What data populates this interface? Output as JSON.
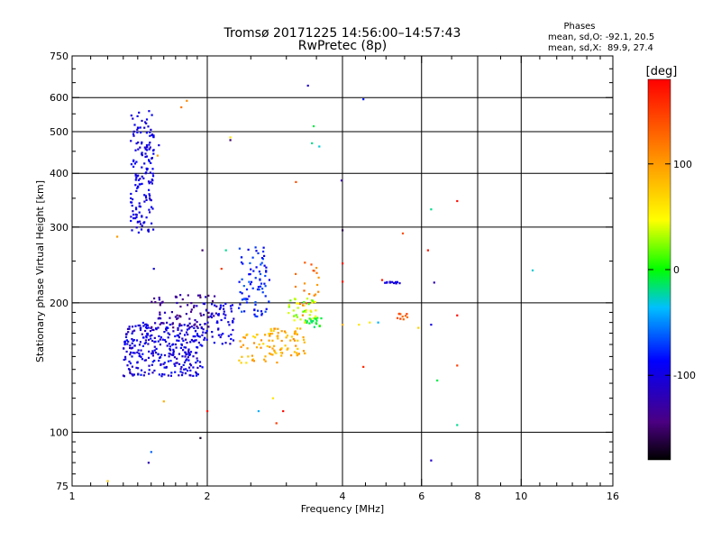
{
  "chart_data": {
    "type": "scatter",
    "title": "Tromsø 20171225 14:56:00–14:57:43",
    "subtitle": "RwPretec (8p)",
    "xlabel": "Frequency [MHz]",
    "ylabel": "Stationary phase Virtual Height [km]",
    "x_scale": "log",
    "y_scale": "log",
    "xlim": [
      1,
      16
    ],
    "ylim": [
      75,
      750
    ],
    "x_ticks": [
      1,
      2,
      4,
      6,
      8,
      10,
      16
    ],
    "x_tick_labels": [
      "1",
      "2",
      "4",
      "6",
      "8",
      "10",
      "16"
    ],
    "x_grid": [
      2,
      4,
      6,
      8,
      10
    ],
    "y_ticks": [
      75,
      100,
      200,
      300,
      400,
      500,
      600,
      750
    ],
    "y_tick_labels": [
      "75",
      "100",
      "200",
      "300",
      "400",
      "500",
      "600",
      "750"
    ],
    "y_grid": [
      100,
      200,
      300,
      400,
      500,
      600
    ],
    "stats": {
      "heading": "Phases",
      "o_line": "mean, sd,O: -92.1, 20.5",
      "x_line": "mean, sd,X:  89.9, 27.4"
    },
    "colorbar": {
      "label": "[deg]",
      "range": [
        -180,
        180
      ],
      "ticks": [
        100,
        0,
        -100
      ],
      "tick_labels": [
        "100",
        "0",
        "-100"
      ]
    },
    "clusters": [
      {
        "f": [
          1.35,
          1.52
        ],
        "h": [
          290,
          560
        ],
        "phase": [
          -110,
          -85
        ],
        "n": 160
      },
      {
        "f": [
          1.3,
          1.95
        ],
        "h": [
          135,
          180
        ],
        "phase": [
          -120,
          -80
        ],
        "n": 320
      },
      {
        "f": [
          1.5,
          2.1
        ],
        "h": [
          175,
          210
        ],
        "phase": [
          -150,
          -110
        ],
        "n": 80
      },
      {
        "f": [
          1.95,
          2.3
        ],
        "h": [
          160,
          200
        ],
        "phase": [
          -110,
          -85
        ],
        "n": 60
      },
      {
        "f": [
          2.35,
          2.75
        ],
        "h": [
          185,
          270
        ],
        "phase": [
          -95,
          -60
        ],
        "n": 80
      },
      {
        "f": [
          2.35,
          2.9
        ],
        "h": [
          145,
          170
        ],
        "phase": [
          60,
          110
        ],
        "n": 45
      },
      {
        "f": [
          2.75,
          3.3
        ],
        "h": [
          150,
          175
        ],
        "phase": [
          70,
          110
        ],
        "n": 55
      },
      {
        "f": [
          3.0,
          3.5
        ],
        "h": [
          180,
          205
        ],
        "phase": [
          10,
          60
        ],
        "n": 40
      },
      {
        "f": [
          3.1,
          3.55
        ],
        "h": [
          175,
          250
        ],
        "phase": [
          100,
          140
        ],
        "n": 20
      },
      {
        "f": [
          3.3,
          3.6
        ],
        "h": [
          175,
          185
        ],
        "phase": [
          -20,
          10
        ],
        "n": 18
      },
      {
        "f": [
          4.95,
          5.4
        ],
        "h": [
          222,
          224
        ],
        "phase": [
          -110,
          -95
        ],
        "n": 14
      },
      {
        "f": [
          5.3,
          5.6
        ],
        "h": [
          183,
          189
        ],
        "phase": [
          120,
          150
        ],
        "n": 10
      }
    ],
    "points": [
      {
        "f": 3.35,
        "h": 640,
        "phase": -110
      },
      {
        "f": 4.45,
        "h": 595,
        "phase": -80
      },
      {
        "f": 1.75,
        "h": 570,
        "phase": 120
      },
      {
        "f": 1.8,
        "h": 590,
        "phase": 110
      },
      {
        "f": 3.45,
        "h": 515,
        "phase": -10
      },
      {
        "f": 2.25,
        "h": 485,
        "phase": 60
      },
      {
        "f": 2.25,
        "h": 478,
        "phase": -150
      },
      {
        "f": 3.42,
        "h": 470,
        "phase": -20
      },
      {
        "f": 3.55,
        "h": 462,
        "phase": -30
      },
      {
        "f": 1.55,
        "h": 440,
        "phase": 100
      },
      {
        "f": 3.15,
        "h": 382,
        "phase": 140
      },
      {
        "f": 3.98,
        "h": 385,
        "phase": -130
      },
      {
        "f": 7.2,
        "h": 345,
        "phase": 175
      },
      {
        "f": 6.3,
        "h": 330,
        "phase": -20
      },
      {
        "f": 4.0,
        "h": 295,
        "phase": -160
      },
      {
        "f": 5.45,
        "h": 290,
        "phase": 140
      },
      {
        "f": 6.2,
        "h": 265,
        "phase": 170
      },
      {
        "f": 4.0,
        "h": 247,
        "phase": 170
      },
      {
        "f": 4.0,
        "h": 224,
        "phase": 170
      },
      {
        "f": 4.9,
        "h": 226,
        "phase": 170
      },
      {
        "f": 6.4,
        "h": 223,
        "phase": -120
      },
      {
        "f": 10.6,
        "h": 238,
        "phase": -30
      },
      {
        "f": 7.2,
        "h": 187,
        "phase": 175
      },
      {
        "f": 6.3,
        "h": 178,
        "phase": -100
      },
      {
        "f": 5.9,
        "h": 175,
        "phase": 70
      },
      {
        "f": 4.6,
        "h": 180,
        "phase": 60
      },
      {
        "f": 4.0,
        "h": 178,
        "phase": 90
      },
      {
        "f": 4.35,
        "h": 178,
        "phase": 60
      },
      {
        "f": 4.8,
        "h": 180,
        "phase": -40
      },
      {
        "f": 4.45,
        "h": 142,
        "phase": 160
      },
      {
        "f": 7.2,
        "h": 143,
        "phase": 150
      },
      {
        "f": 6.5,
        "h": 132,
        "phase": -10
      },
      {
        "f": 7.2,
        "h": 104,
        "phase": -20
      },
      {
        "f": 6.3,
        "h": 86,
        "phase": -110
      },
      {
        "f": 1.93,
        "h": 97,
        "phase": -170
      },
      {
        "f": 1.5,
        "h": 90,
        "phase": -60
      },
      {
        "f": 1.48,
        "h": 85,
        "phase": -120
      },
      {
        "f": 1.6,
        "h": 118,
        "phase": 90
      },
      {
        "f": 2.6,
        "h": 112,
        "phase": -40
      },
      {
        "f": 2.85,
        "h": 105,
        "phase": 150
      },
      {
        "f": 2.95,
        "h": 112,
        "phase": 175
      },
      {
        "f": 2.0,
        "h": 112,
        "phase": 170
      },
      {
        "f": 1.2,
        "h": 77,
        "phase": 80
      },
      {
        "f": 1.26,
        "h": 285,
        "phase": 100
      },
      {
        "f": 1.52,
        "h": 240,
        "phase": -100
      },
      {
        "f": 1.56,
        "h": 465,
        "phase": -100
      },
      {
        "f": 1.95,
        "h": 265,
        "phase": -150
      },
      {
        "f": 2.2,
        "h": 265,
        "phase": -20
      },
      {
        "f": 2.15,
        "h": 240,
        "phase": 150
      },
      {
        "f": 2.8,
        "h": 120,
        "phase": 60
      }
    ]
  }
}
